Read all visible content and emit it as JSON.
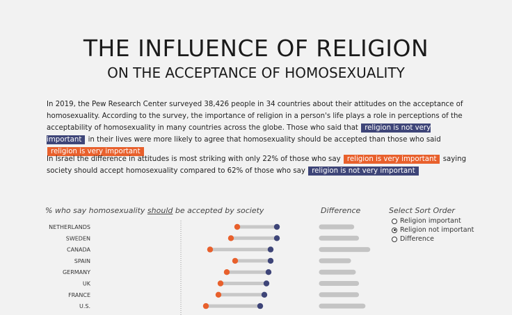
{
  "title": "THE INFLUENCE OF RELIGION",
  "subtitle": "ON THE ACCEPTANCE OF HOMOSEXUALITY",
  "para1": {
    "a": "In 2019, the Pew Research Center surveyed 38,426 people in 34 countries about their attitudes on the acceptance of homosexuality. According to the survey, the importance of religion in a person's life plays a role in perceptions of the acceptability of homosexuality in many countries across the globe. Those who said that",
    "hl1": "religion is not very important",
    "b": "in their lives were more likely to agree that homosexuality should be accepted than those who said",
    "hl2": "religion is very important"
  },
  "para2": {
    "a": "In Israel the difference in attitudes is most striking with only 22% of those who say",
    "hl1": "religion is very important",
    "b": "saying society should accept homosexuality compared to 62% of those who say",
    "hl2": "religion is not very important"
  },
  "headers": {
    "main_pre": "% who say homosexuality ",
    "main_u": "should",
    "main_post": " be accepted by society",
    "difference": "Difference",
    "sort": "Select Sort Order"
  },
  "sort_options": [
    {
      "label": "Religion important",
      "selected": false
    },
    {
      "label": "Religion not important",
      "selected": true
    },
    {
      "label": "Difference",
      "selected": false
    }
  ],
  "colors": {
    "important": "#e8602c",
    "not_important": "#3e4578",
    "connector": "#c8c8c8",
    "diff_bar": "#c4c4c4"
  },
  "chart_data": {
    "type": "dumbbell",
    "xlim": [
      0,
      100
    ],
    "reference_line": 50,
    "series": [
      {
        "name": "religion is very important",
        "key": "important"
      },
      {
        "name": "religion is not very important",
        "key": "not_important"
      }
    ],
    "rows": [
      {
        "country": "NETHERLANDS",
        "important": 77,
        "not_important": 96
      },
      {
        "country": "SWEDEN",
        "important": 74,
        "not_important": 96
      },
      {
        "country": "CANADA",
        "important": 64,
        "not_important": 93
      },
      {
        "country": "SPAIN",
        "important": 76,
        "not_important": 93
      },
      {
        "country": "GERMANY",
        "important": 72,
        "not_important": 92
      },
      {
        "country": "UK",
        "important": 69,
        "not_important": 91
      },
      {
        "country": "FRANCE",
        "important": 68,
        "not_important": 90
      },
      {
        "country": "U.S.",
        "important": 62,
        "not_important": 88
      }
    ]
  }
}
